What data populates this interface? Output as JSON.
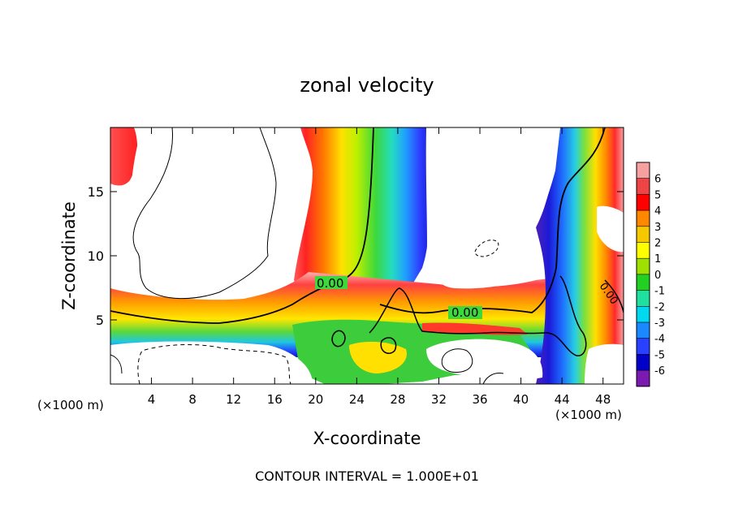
{
  "chart_data": {
    "type": "heatmap",
    "title": "zonal velocity",
    "xlabel": "X-coordinate",
    "ylabel": "Z-coordinate",
    "x_unit_left": "(×1000 m)",
    "x_unit_right": "(×1000 m)",
    "xlim": [
      0,
      50
    ],
    "ylim": [
      0,
      20
    ],
    "x_ticks": [
      4,
      8,
      12,
      16,
      20,
      24,
      28,
      32,
      36,
      40,
      44,
      48
    ],
    "y_ticks": [
      5,
      10,
      15
    ],
    "footer": "CONTOUR INTERVAL = 1.000E+01",
    "contour_labels": [
      "0.00",
      "0.00",
      "0.00"
    ],
    "colorbar": {
      "levels": [
        6,
        5,
        4,
        3,
        2,
        1,
        0,
        -1,
        -2,
        -3,
        -4,
        -5,
        -6
      ],
      "colors": [
        "#f6a0a0",
        "#ee4444",
        "#ff0000",
        "#ff8800",
        "#f5c800",
        "#ffff00",
        "#a0e000",
        "#22d022",
        "#20e0a0",
        "#00d8f0",
        "#1a88ff",
        "#2840ff",
        "#0000c8",
        "#7a1ab0"
      ]
    },
    "grid": false,
    "legend_placement": "right"
  }
}
